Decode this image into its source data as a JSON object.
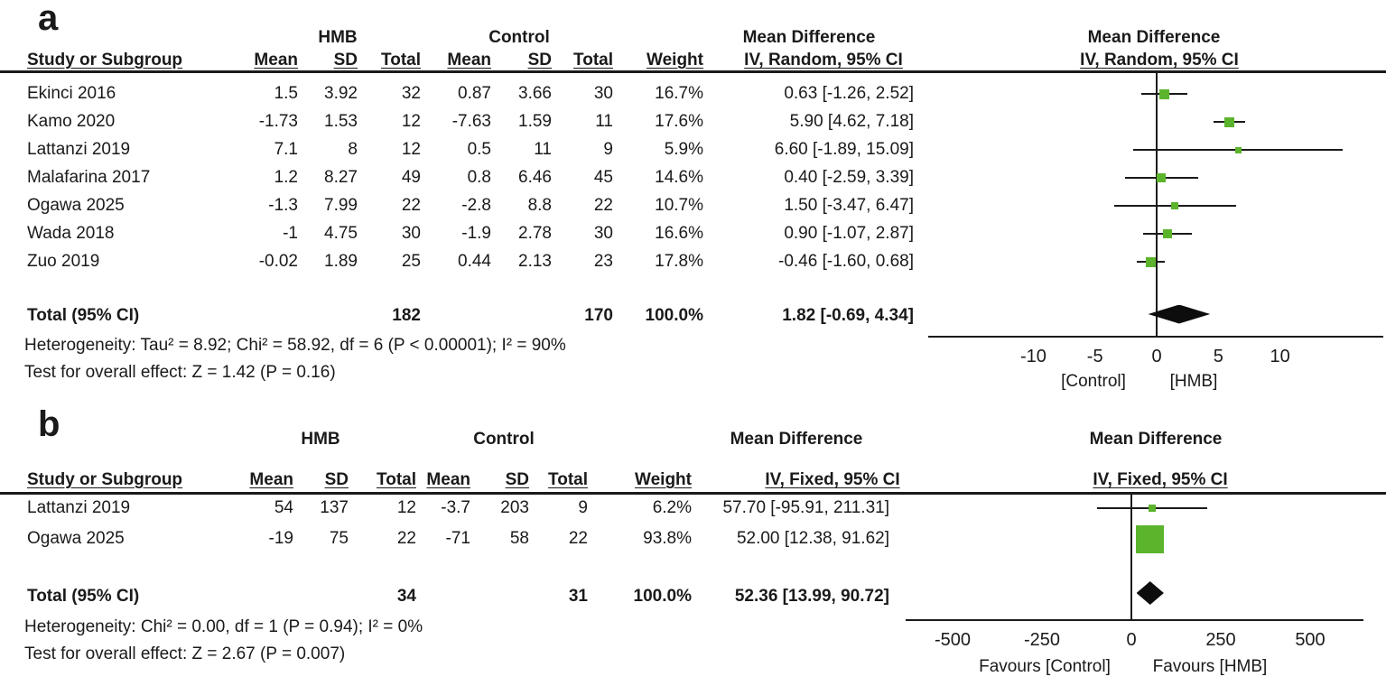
{
  "colors": {
    "marker_green": "#5BB42C",
    "line_black": "#1a1a1a"
  },
  "chart_data": [
    {
      "type": "scatter",
      "subtype": "forest-plot",
      "label": "a",
      "group_headers": {
        "treatment": "HMB",
        "control": "Control",
        "md_table": "Mean Difference",
        "md_plot": "Mean Difference"
      },
      "columns": {
        "study": "Study or Subgroup",
        "mean": "Mean",
        "sd": "SD",
        "total": "Total",
        "weight": "Weight",
        "ci_table": "IV, Random, 95% CI",
        "ci_plot": "IV, Random, 95% CI"
      },
      "studies": [
        {
          "name": "Ekinci 2016",
          "t_mean": "1.5",
          "t_sd": "3.92",
          "t_total": "32",
          "c_mean": "0.87",
          "c_sd": "3.66",
          "c_total": "30",
          "weight": "16.7%",
          "weight_pct": 16.7,
          "ci_text": "0.63 [-1.26, 2.52]",
          "md": 0.63,
          "lo": -1.26,
          "hi": 2.52
        },
        {
          "name": "Kamo 2020",
          "t_mean": "-1.73",
          "t_sd": "1.53",
          "t_total": "12",
          "c_mean": "-7.63",
          "c_sd": "1.59",
          "c_total": "11",
          "weight": "17.6%",
          "weight_pct": 17.6,
          "ci_text": "5.90 [4.62, 7.18]",
          "md": 5.9,
          "lo": 4.62,
          "hi": 7.18
        },
        {
          "name": "Lattanzi 2019",
          "t_mean": "7.1",
          "t_sd": "8",
          "t_total": "12",
          "c_mean": "0.5",
          "c_sd": "11",
          "c_total": "9",
          "weight": "5.9%",
          "weight_pct": 5.9,
          "ci_text": "6.60 [-1.89, 15.09]",
          "md": 6.6,
          "lo": -1.89,
          "hi": 15.09
        },
        {
          "name": "Malafarina 2017",
          "t_mean": "1.2",
          "t_sd": "8.27",
          "t_total": "49",
          "c_mean": "0.8",
          "c_sd": "6.46",
          "c_total": "45",
          "weight": "14.6%",
          "weight_pct": 14.6,
          "ci_text": "0.40 [-2.59, 3.39]",
          "md": 0.4,
          "lo": -2.59,
          "hi": 3.39
        },
        {
          "name": "Ogawa 2025",
          "t_mean": "-1.3",
          "t_sd": "7.99",
          "t_total": "22",
          "c_mean": "-2.8",
          "c_sd": "8.8",
          "c_total": "22",
          "weight": "10.7%",
          "weight_pct": 10.7,
          "ci_text": "1.50 [-3.47, 6.47]",
          "md": 1.5,
          "lo": -3.47,
          "hi": 6.47
        },
        {
          "name": "Wada 2018",
          "t_mean": "-1",
          "t_sd": "4.75",
          "t_total": "30",
          "c_mean": "-1.9",
          "c_sd": "2.78",
          "c_total": "30",
          "weight": "16.6%",
          "weight_pct": 16.6,
          "ci_text": "0.90 [-1.07, 2.87]",
          "md": 0.9,
          "lo": -1.07,
          "hi": 2.87
        },
        {
          "name": "Zuo 2019",
          "t_mean": "-0.02",
          "t_sd": "1.89",
          "t_total": "25",
          "c_mean": "0.44",
          "c_sd": "2.13",
          "c_total": "23",
          "weight": "17.8%",
          "weight_pct": 17.8,
          "ci_text": "-0.46 [-1.60, 0.68]",
          "md": -0.46,
          "lo": -1.6,
          "hi": 0.68
        }
      ],
      "total_row": {
        "label": "Total (95% CI)",
        "t_total": "182",
        "c_total": "170",
        "weight": "100.0%",
        "ci_text": "1.82 [-0.69, 4.34]",
        "md": 1.82,
        "lo": -0.69,
        "hi": 4.34
      },
      "heterogeneity": "Heterogeneity: Tau² = 8.92; Chi² = 58.92, df = 6 (P < 0.00001); I² = 90%",
      "overall_effect": "Test for overall effect: Z = 1.42 (P = 0.16)",
      "axis": {
        "tick_values": [
          -10,
          -5,
          0,
          5,
          10
        ],
        "tick_labels": [
          "-10",
          "-5",
          "0",
          "5",
          "10"
        ],
        "favours_left": "[Control]",
        "favours_right": "[HMB]"
      }
    },
    {
      "type": "scatter",
      "subtype": "forest-plot",
      "label": "b",
      "group_headers": {
        "treatment": "HMB",
        "control": "Control",
        "md_table": "Mean Difference",
        "md_plot": "Mean Difference"
      },
      "columns": {
        "study": "Study or Subgroup",
        "mean": "Mean",
        "sd": "SD",
        "total": "Total",
        "weight": "Weight",
        "ci_table": "IV, Fixed, 95% CI",
        "ci_plot": "IV, Fixed, 95% CI"
      },
      "studies": [
        {
          "name": "Lattanzi 2019",
          "t_mean": "54",
          "t_sd": "137",
          "t_total": "12",
          "c_mean": "-3.7",
          "c_sd": "203",
          "c_total": "9",
          "weight": "6.2%",
          "weight_pct": 6.2,
          "ci_text": "57.70 [-95.91, 211.31]",
          "md": 57.7,
          "lo": -95.91,
          "hi": 211.31
        },
        {
          "name": "Ogawa 2025",
          "t_mean": "-19",
          "t_sd": "75",
          "t_total": "22",
          "c_mean": "-71",
          "c_sd": "58",
          "c_total": "22",
          "weight": "93.8%",
          "weight_pct": 93.8,
          "ci_text": "52.00 [12.38, 91.62]",
          "md": 52.0,
          "lo": 12.38,
          "hi": 91.62
        }
      ],
      "total_row": {
        "label": "Total (95% CI)",
        "t_total": "34",
        "c_total": "31",
        "weight": "100.0%",
        "ci_text": "52.36 [13.99, 90.72]",
        "md": 52.36,
        "lo": 13.99,
        "hi": 90.72
      },
      "heterogeneity": "Heterogeneity: Chi² = 0.00, df = 1 (P = 0.94); I² = 0%",
      "overall_effect": "Test for overall effect: Z = 2.67 (P = 0.007)",
      "axis": {
        "tick_values": [
          -500,
          -250,
          0,
          250,
          500
        ],
        "tick_labels": [
          "-500",
          "-250",
          "0",
          "250",
          "500"
        ],
        "favours_left": "Favours [Control]",
        "favours_right": "Favours [HMB]"
      }
    }
  ]
}
